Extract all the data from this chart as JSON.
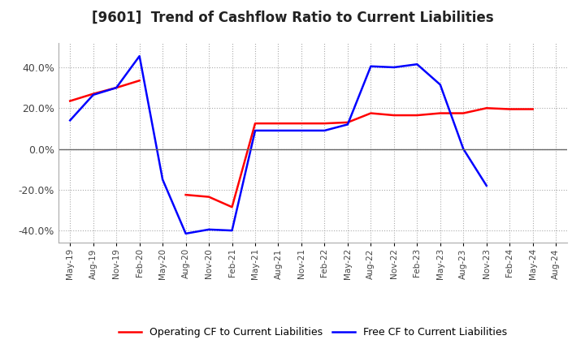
{
  "title": "[9601]  Trend of Cashflow Ratio to Current Liabilities",
  "title_fontsize": 12,
  "background_color": "#ffffff",
  "plot_bg_color": "#ffffff",
  "grid_color": "#aaaaaa",
  "x_labels": [
    "May-19",
    "Aug-19",
    "Nov-19",
    "Feb-20",
    "May-20",
    "Aug-20",
    "Nov-20",
    "Feb-21",
    "May-21",
    "Aug-21",
    "Nov-21",
    "Feb-22",
    "May-22",
    "Aug-22",
    "Nov-22",
    "Feb-23",
    "May-23",
    "Aug-23",
    "Nov-23",
    "Feb-24",
    "May-24",
    "Aug-24"
  ],
  "operating_cf": [
    0.235,
    0.27,
    0.3,
    0.335,
    null,
    -0.225,
    -0.235,
    -0.285,
    0.125,
    0.125,
    0.125,
    0.125,
    0.13,
    0.175,
    0.165,
    0.165,
    0.175,
    0.175,
    0.2,
    0.195,
    0.195,
    null
  ],
  "free_cf": [
    0.14,
    0.265,
    0.3,
    0.455,
    -0.15,
    -0.415,
    -0.395,
    -0.4,
    0.09,
    0.09,
    0.09,
    0.09,
    0.12,
    0.405,
    0.4,
    0.415,
    0.315,
    0.0,
    -0.18,
    null,
    null,
    null
  ],
  "operating_color": "#ff0000",
  "free_color": "#0000ff",
  "ylim": [
    -0.46,
    0.52
  ],
  "yticks": [
    -0.4,
    -0.2,
    0.0,
    0.2,
    0.4
  ],
  "legend_op": "Operating CF to Current Liabilities",
  "legend_free": "Free CF to Current Liabilities",
  "line_width": 1.8
}
